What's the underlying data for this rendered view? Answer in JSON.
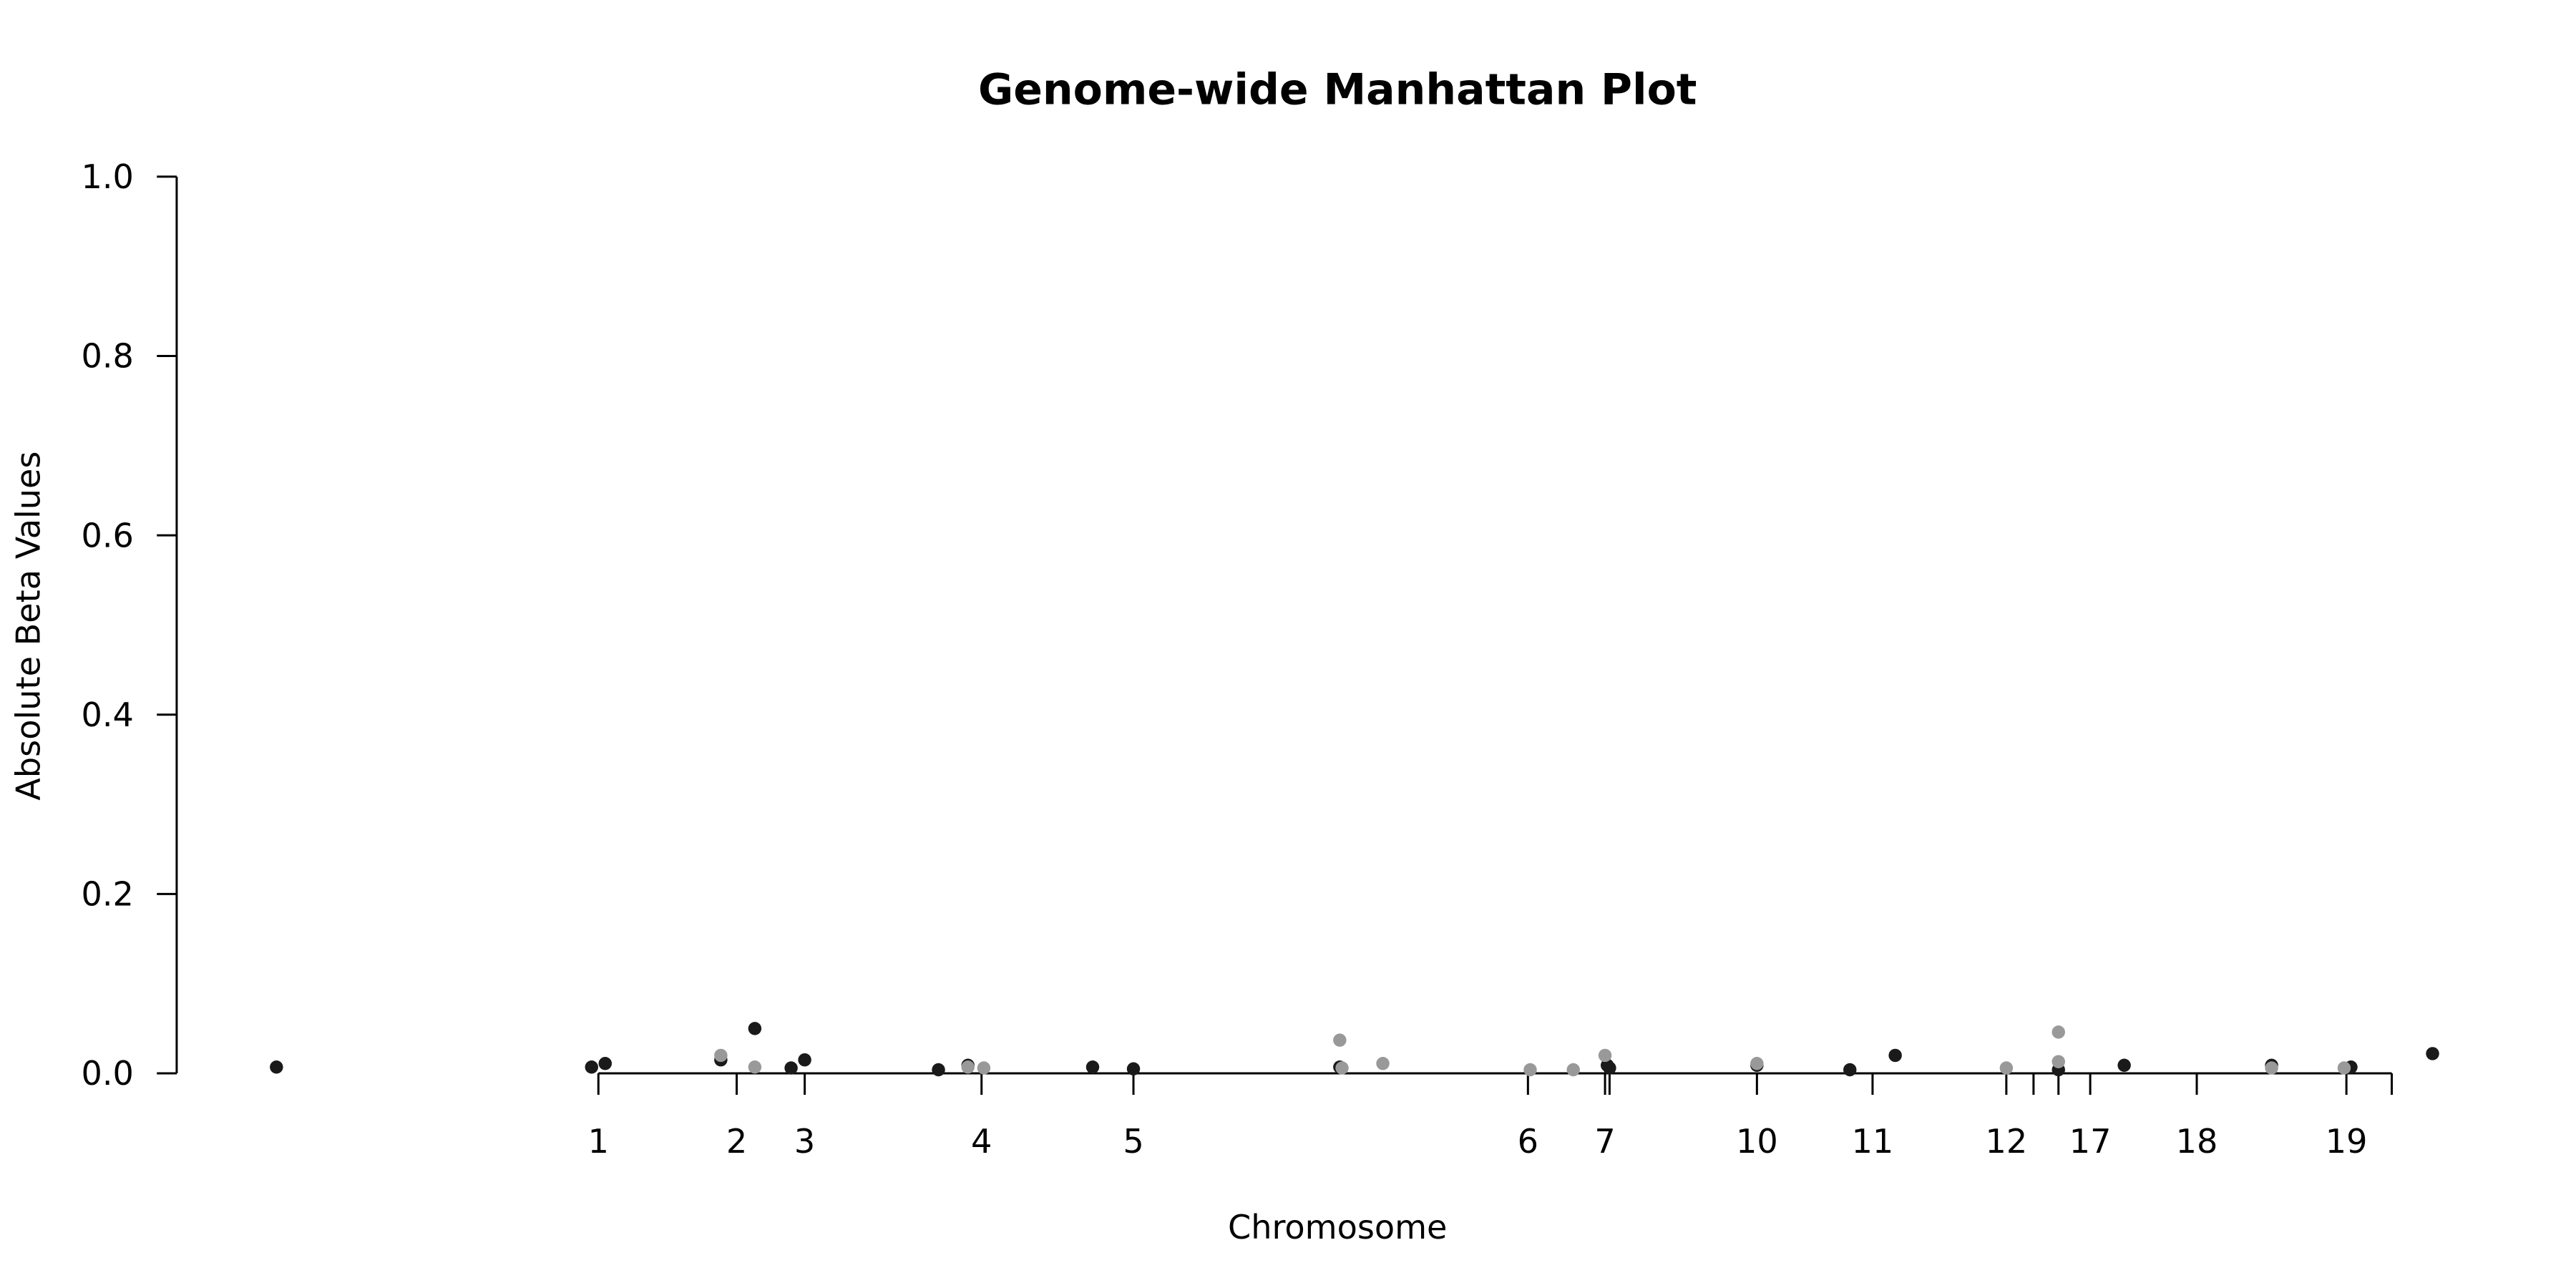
{
  "chart_data": {
    "type": "scatter",
    "title": "Genome-wide Manhattan Plot",
    "xlabel": "Chromosome",
    "ylabel": "Absolute Beta Values",
    "xlim": [
      0,
      100
    ],
    "ylim": [
      0,
      1
    ],
    "yticks": [
      {
        "value": 0,
        "label": "0.0"
      },
      {
        "value": 0.2,
        "label": "0.2"
      },
      {
        "value": 0.4,
        "label": "0.4"
      },
      {
        "value": 0.6,
        "label": "0.6"
      },
      {
        "value": 0.8,
        "label": "0.8"
      },
      {
        "value": 1,
        "label": "1.0"
      }
    ],
    "xticks": [
      {
        "value": 18.6,
        "label": "1"
      },
      {
        "value": 24.7,
        "label": "2"
      },
      {
        "value": 27.7,
        "label": "3"
      },
      {
        "value": 35.5,
        "label": "4"
      },
      {
        "value": 42.2,
        "label": "5"
      },
      {
        "value": 59.6,
        "label": "6"
      },
      {
        "value": 63.0,
        "label": "7"
      },
      {
        "value": 63.2,
        "label": null
      },
      {
        "value": 69.7,
        "label": "10"
      },
      {
        "value": 74.8,
        "label": "11"
      },
      {
        "value": 80.7,
        "label": "12"
      },
      {
        "value": 81.9,
        "label": null
      },
      {
        "value": 83.0,
        "label": null
      },
      {
        "value": 84.4,
        "label": "17"
      },
      {
        "value": 89.1,
        "label": "18"
      },
      {
        "value": 95.7,
        "label": "19"
      },
      {
        "value": 97.7,
        "label": null
      }
    ],
    "series": [
      {
        "color": "#1a1a1a",
        "x": [
          4.4,
          18.3,
          18.9,
          24.0,
          25.5,
          27.1,
          27.7,
          33.6,
          34.9,
          40.4,
          42.2,
          51.3,
          63.1,
          63.2,
          69.7,
          73.8,
          75.8,
          83.0,
          85.9,
          92.4,
          95.9,
          99.5
        ],
        "values": [
          0.007,
          0.007,
          0.011,
          0.015,
          0.05,
          0.006,
          0.015,
          0.004,
          0.009,
          0.007,
          0.005,
          0.007,
          0.009,
          0.006,
          0.009,
          0.004,
          0.02,
          0.004,
          0.009,
          0.009,
          0.007,
          0.022
        ]
      },
      {
        "color": "#999999",
        "x": [
          24.0,
          25.5,
          34.9,
          35.6,
          51.3,
          51.4,
          53.2,
          59.7,
          61.6,
          63.0,
          69.7,
          80.7,
          83.0,
          83.0,
          92.4,
          95.6
        ],
        "values": [
          0.02,
          0.007,
          0.007,
          0.006,
          0.037,
          0.006,
          0.011,
          0.004,
          0.004,
          0.02,
          0.011,
          0.006,
          0.046,
          0.013,
          0.006,
          0.006
        ]
      }
    ]
  }
}
